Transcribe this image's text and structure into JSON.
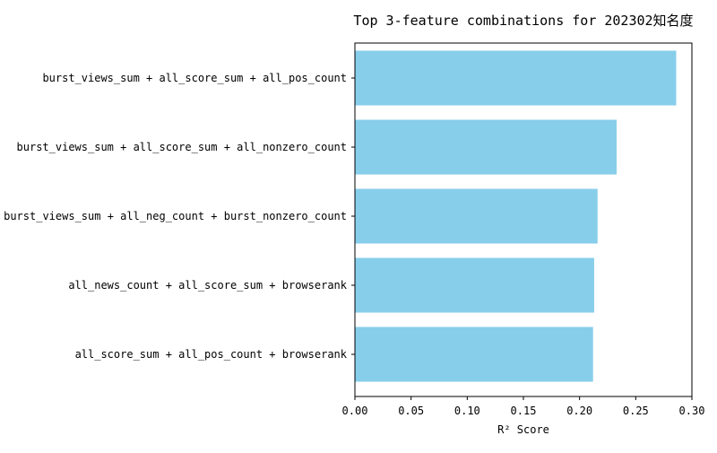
{
  "chart_data": {
    "type": "bar",
    "orientation": "horizontal",
    "title": "Top 3-feature combinations for 202302知名度",
    "xlabel": "R² Score",
    "ylabel": "",
    "xlim": [
      0.0,
      0.3
    ],
    "xticks": [
      "0.00",
      "0.05",
      "0.10",
      "0.15",
      "0.20",
      "0.25",
      "0.30"
    ],
    "grid": false,
    "bar_color": "#87CEEB",
    "categories": [
      "burst_views_sum + all_score_sum + all_pos_count",
      "burst_views_sum + all_score_sum + all_nonzero_count",
      "burst_views_sum + all_neg_count + burst_nonzero_count",
      "all_news_count + all_score_sum + browserank",
      "all_score_sum + all_pos_count + browserank"
    ],
    "values": [
      0.286,
      0.233,
      0.216,
      0.213,
      0.212
    ]
  }
}
